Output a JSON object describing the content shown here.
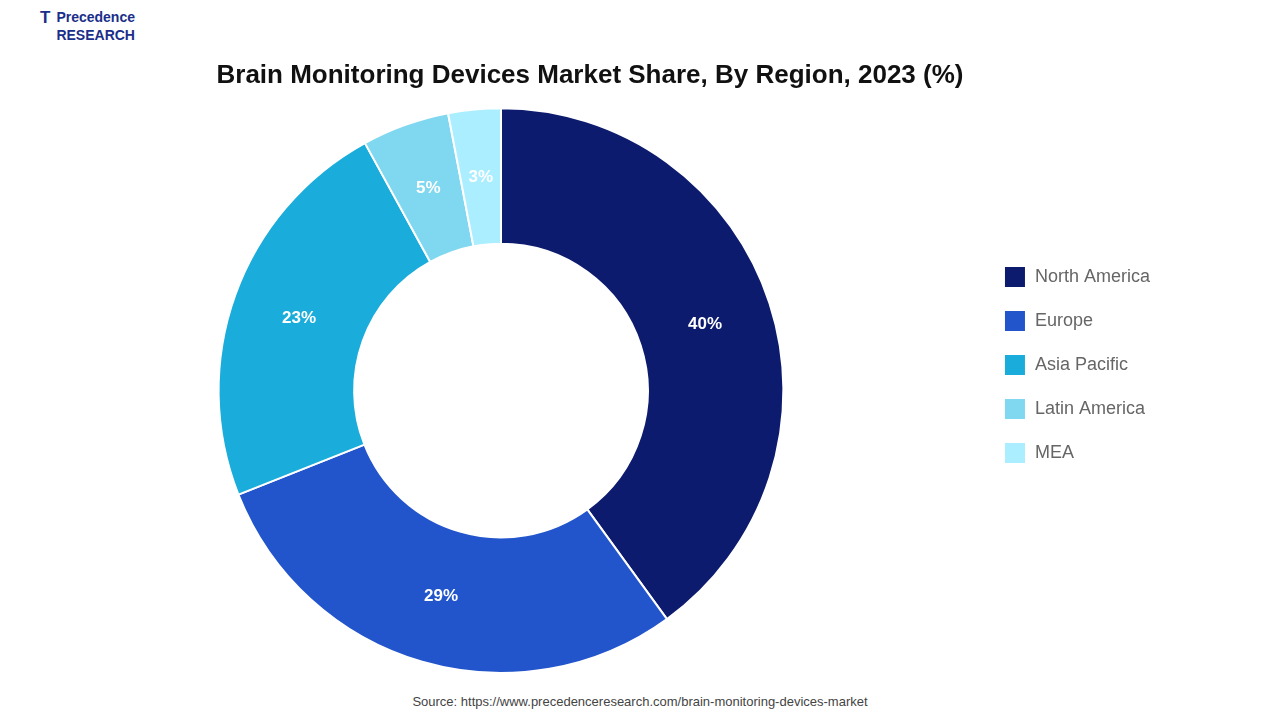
{
  "chart_data": {
    "type": "doughnut",
    "title": "Brain Monitoring Devices Market Share, By Region, 2023 (%)",
    "categories": [
      "North America",
      "Europe",
      "Asia Pacific",
      "Latin America",
      "MEA"
    ],
    "values": [
      40,
      29,
      23,
      5,
      3
    ],
    "value_labels": [
      "40%",
      "29%",
      "23%",
      "5%",
      "3%"
    ],
    "colors": [
      "#0d1b6e",
      "#2255cc",
      "#1aaddb",
      "#7fd8f0",
      "#aaeeff"
    ],
    "data_labels": true,
    "legend": "right",
    "annotations": [
      "T",
      "Precedence\nRESEARCH",
      "Source: https://www.precedenceresearch.com/brain-monitoring-devices-market"
    ]
  }
}
